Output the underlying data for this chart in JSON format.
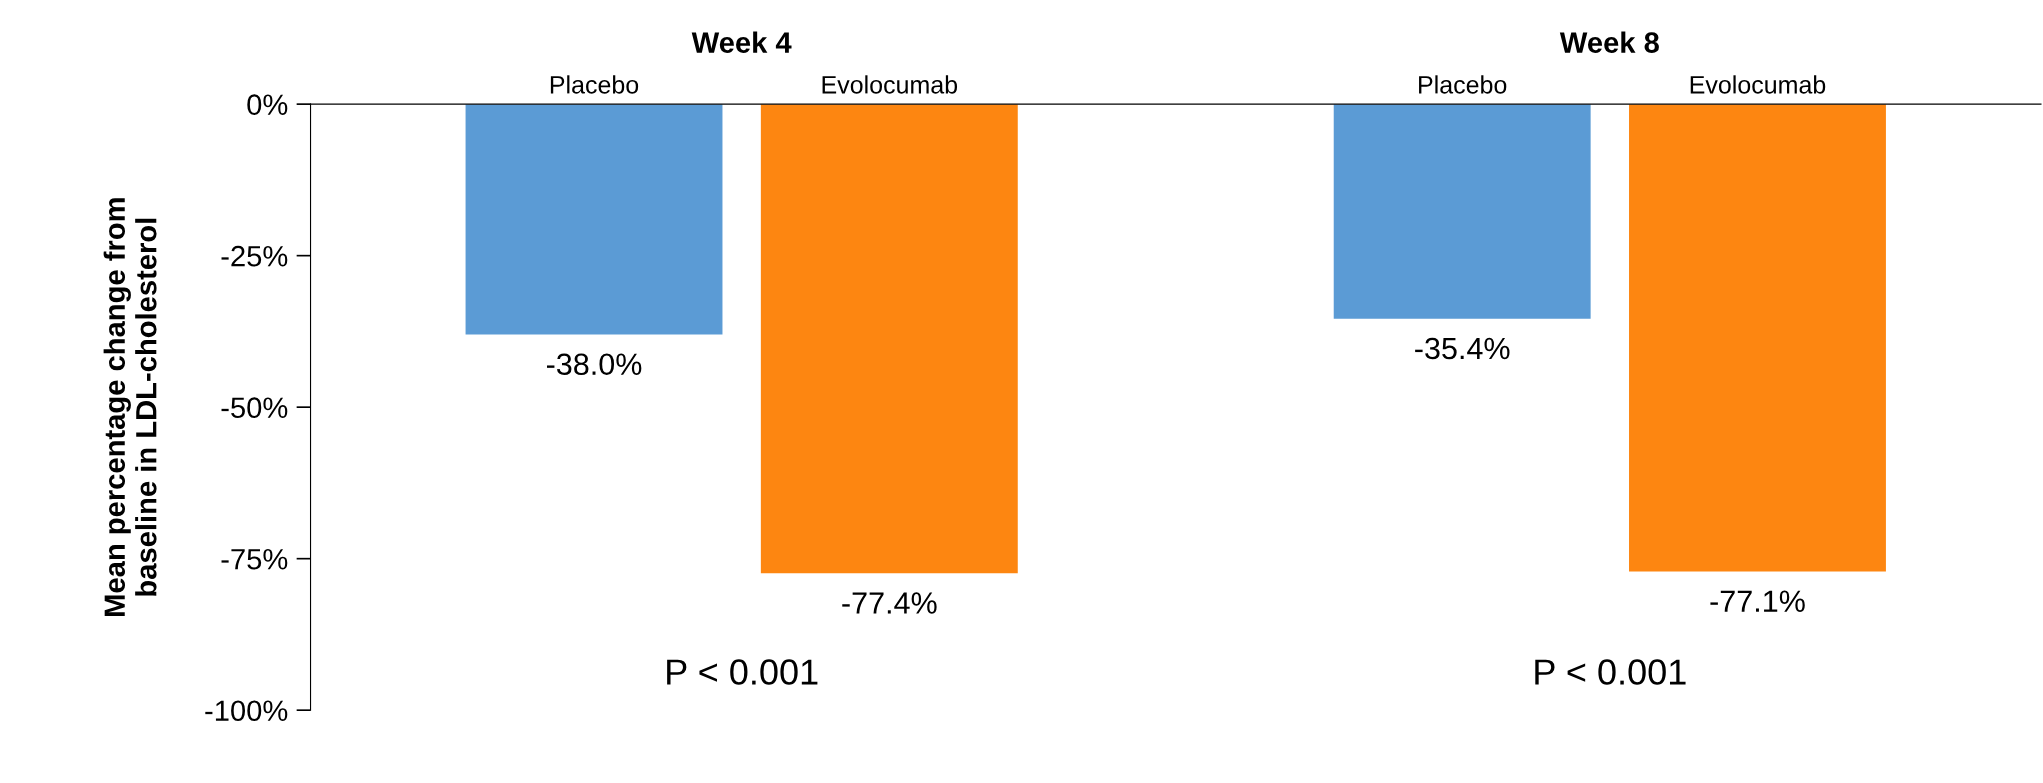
{
  "chart_data": {
    "type": "bar",
    "ylabel": "Mean percentage change from\nbaseline in LDL-cholesterol",
    "categories": [
      "Placebo",
      "Evolocumab",
      "Placebo",
      "Evolocumab"
    ],
    "values": [
      -38.0,
      -77.4,
      -35.4,
      -77.1
    ],
    "colors": [
      "#5b9bd5",
      "#fd8611",
      "#5b9bd5",
      "#fd8611"
    ],
    "value_labels": [
      "-38.0%",
      "-77.4%",
      "-35.4%",
      "-77.1%"
    ],
    "ylim": [
      -100,
      0
    ],
    "yticks": [
      {
        "value": 0,
        "label": "0%"
      },
      {
        "value": -25,
        "label": "-25%"
      },
      {
        "value": -50,
        "label": "-50%"
      },
      {
        "value": -75,
        "label": "-75%"
      },
      {
        "value": -100,
        "label": "-100%"
      }
    ],
    "annotations": [
      "Week 4",
      "Week 8",
      "P < 0.001",
      "P < 0.001"
    ],
    "grid": false,
    "legend": false
  }
}
